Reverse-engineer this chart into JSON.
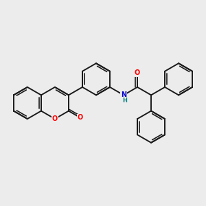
{
  "background_color": "#ececec",
  "bond_color": "#1a1a1a",
  "bond_width": 1.4,
  "atom_colors": {
    "O": "#ff0000",
    "N": "#0000cd",
    "H": "#008080"
  },
  "figsize": [
    3.0,
    3.0
  ],
  "dpi": 100
}
